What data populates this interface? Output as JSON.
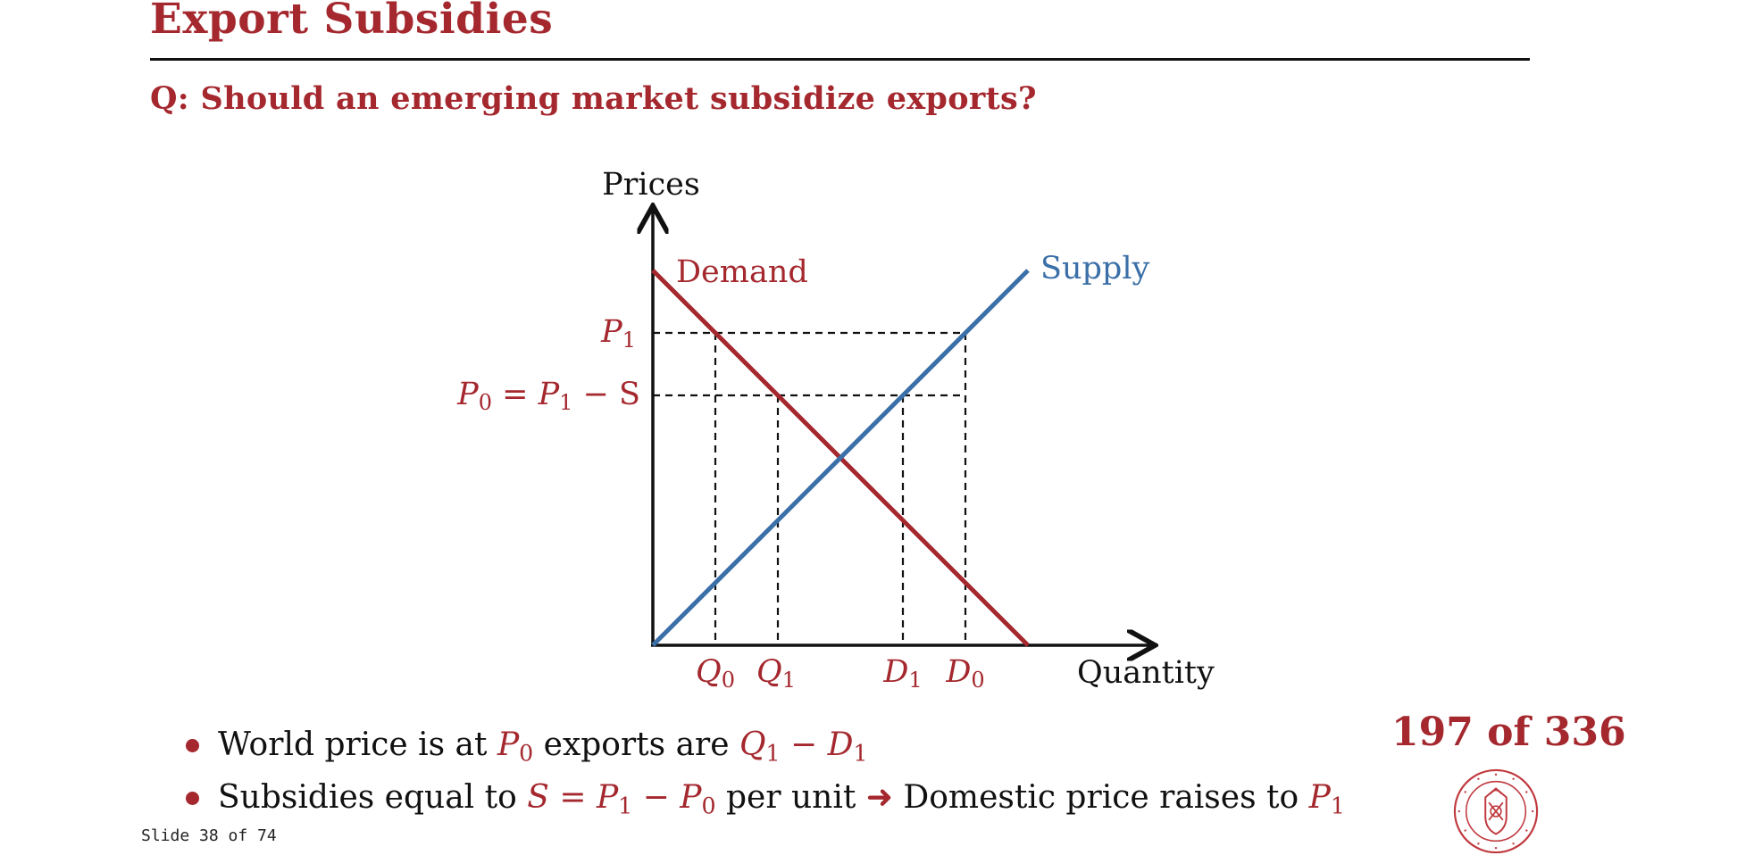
{
  "slide": {
    "title": "Export Subsidies",
    "question": "Q: Should an emerging market subsidize exports?",
    "page_counter": "197 of 336",
    "slide_number": "Slide 38 of 74",
    "logo_text": "CARNEGIE MELLON UNIVERSITY · PITTSBURGH PENNSYLVANIA 1900"
  },
  "diagram": {
    "y_axis_label": "Prices",
    "x_axis_label": "Quantity",
    "demand_label": "Demand",
    "supply_label": "Supply",
    "p1_label": {
      "main": "P",
      "sub": "1"
    },
    "p0_label": {
      "main": "P",
      "sub0": "0",
      "eq": " = ",
      "main2": "P",
      "sub1": "1",
      "rest": " − S"
    },
    "q0_label": {
      "main": "Q",
      "sub": "0"
    },
    "q1_label": {
      "main": "Q",
      "sub": "1"
    },
    "d1_label": {
      "main": "D",
      "sub": "1"
    },
    "d0_label": {
      "main": "D",
      "sub": "0"
    }
  },
  "bullets": [
    {
      "text1": "World price is at ",
      "m1": "P",
      "m1sub": "0",
      "text2": " exports are ",
      "m2": "Q",
      "m2sub": "1",
      "m2rest": " − ",
      "m3": "D",
      "m3sub": "1"
    },
    {
      "text1": "Subsidies equal to ",
      "m1": "S",
      "eq": " = ",
      "m2": "P",
      "m2sub": "1",
      "minus": " − ",
      "m3": "P",
      "m3sub": "0",
      "text2": " per unit ",
      "arrow": "➜",
      "text3": " Domestic price raises to ",
      "m4": "P",
      "m4sub": "1"
    }
  ],
  "colors": {
    "accent": "#a4282e",
    "supply": "#3a6fa8",
    "axis": "#111111"
  }
}
